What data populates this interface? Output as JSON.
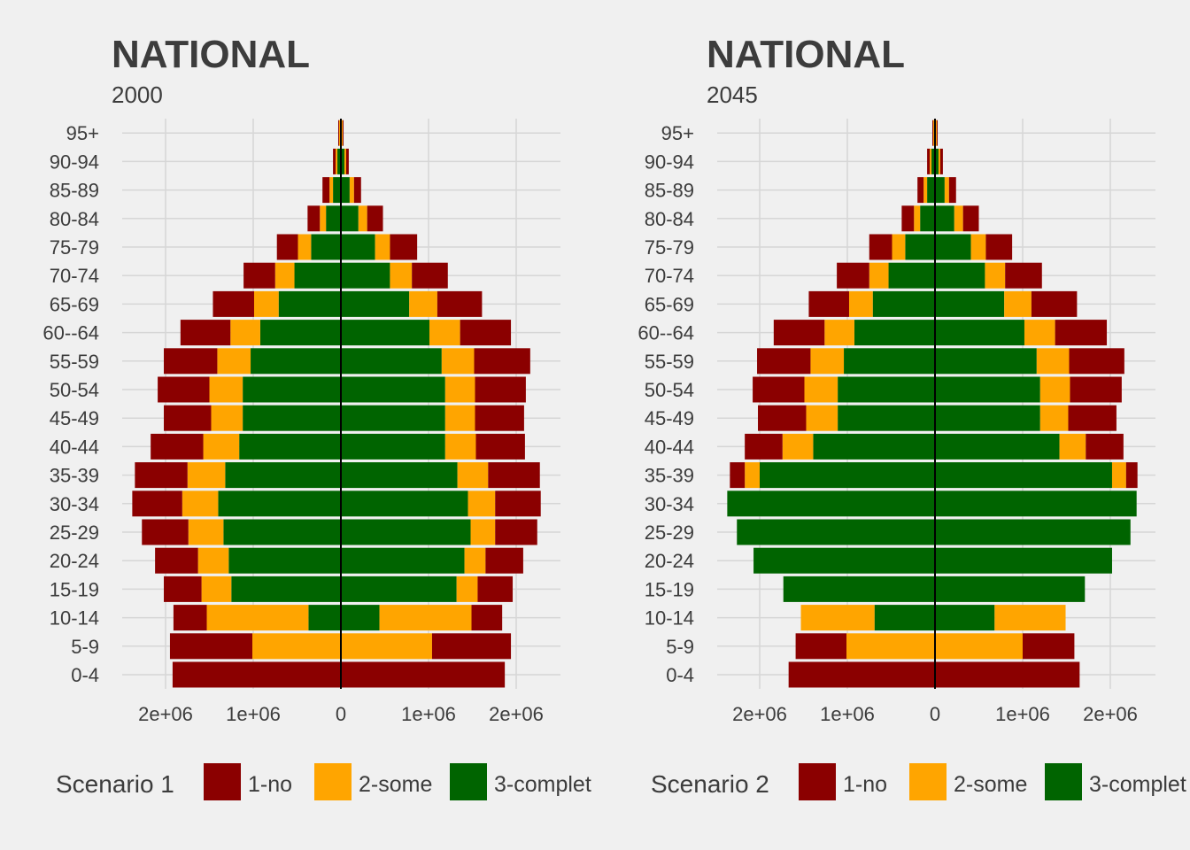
{
  "chart_data": [
    {
      "type": "bar",
      "orientation": "horizontal",
      "stacked": true,
      "pyramid": true,
      "title": "NATIONAL",
      "subtitle": "2000",
      "legend_title": "Scenario 1",
      "legend_position": "bottom",
      "grid": true,
      "xlim": [
        -2500000,
        2500000
      ],
      "x_ticks": [
        {
          "value": -2000000,
          "label": "2e+06"
        },
        {
          "value": -1000000,
          "label": "1e+06"
        },
        {
          "value": 0,
          "label": "0"
        },
        {
          "value": 1000000,
          "label": "1e+06"
        },
        {
          "value": 2000000,
          "label": "2e+06"
        }
      ],
      "categories": [
        "0-4",
        "5-9",
        "10-14",
        "15-19",
        "20-24",
        "25-29",
        "30-34",
        "35-39",
        "40-44",
        "45-49",
        "50-54",
        "55-59",
        "60--64",
        "65-69",
        "70-74",
        "75-79",
        "80-84",
        "85-89",
        "90-94",
        "95+"
      ],
      "series": [
        {
          "name": "3-complet",
          "color": "#006400",
          "left": [
            0,
            0,
            370000,
            1250000,
            1280000,
            1340000,
            1400000,
            1320000,
            1160000,
            1120000,
            1120000,
            1030000,
            920000,
            710000,
            530000,
            340000,
            170000,
            90000,
            40000,
            10000
          ],
          "right": [
            0,
            0,
            440000,
            1320000,
            1410000,
            1480000,
            1450000,
            1330000,
            1190000,
            1190000,
            1190000,
            1150000,
            1010000,
            780000,
            560000,
            390000,
            200000,
            100000,
            40000,
            10000
          ]
        },
        {
          "name": "2-some",
          "color": "#ffa500",
          "left": [
            0,
            1010000,
            1160000,
            340000,
            350000,
            400000,
            410000,
            430000,
            410000,
            360000,
            380000,
            380000,
            340000,
            280000,
            220000,
            150000,
            70000,
            40000,
            20000,
            10000
          ],
          "right": [
            0,
            1040000,
            1050000,
            240000,
            240000,
            280000,
            310000,
            350000,
            350000,
            340000,
            340000,
            370000,
            350000,
            320000,
            250000,
            170000,
            100000,
            50000,
            20000,
            10000
          ]
        },
        {
          "name": "1-no",
          "color": "#8b0000",
          "left": [
            1920000,
            940000,
            380000,
            430000,
            490000,
            530000,
            570000,
            600000,
            600000,
            540000,
            590000,
            610000,
            570000,
            470000,
            360000,
            240000,
            140000,
            80000,
            30000,
            10000
          ],
          "right": [
            1870000,
            900000,
            350000,
            400000,
            430000,
            480000,
            520000,
            590000,
            560000,
            560000,
            580000,
            640000,
            580000,
            510000,
            410000,
            310000,
            180000,
            80000,
            30000,
            10000
          ]
        }
      ]
    },
    {
      "type": "bar",
      "orientation": "horizontal",
      "stacked": true,
      "pyramid": true,
      "title": "NATIONAL",
      "subtitle": "2045",
      "legend_title": "Scenario 2",
      "legend_position": "bottom",
      "grid": true,
      "xlim": [
        -2500000,
        2500000
      ],
      "x_ticks": [
        {
          "value": -2000000,
          "label": "2e+06"
        },
        {
          "value": -1000000,
          "label": "1e+06"
        },
        {
          "value": 0,
          "label": "0"
        },
        {
          "value": 1000000,
          "label": "1e+06"
        },
        {
          "value": 2000000,
          "label": "2e+06"
        }
      ],
      "categories": [
        "0-4",
        "5-9",
        "10-14",
        "15-19",
        "20-24",
        "25-29",
        "30-34",
        "35-39",
        "40-44",
        "45-49",
        "50-54",
        "55-59",
        "60--64",
        "65-69",
        "70-74",
        "75-79",
        "80-84",
        "85-89",
        "90-94",
        "95+"
      ],
      "series": [
        {
          "name": "3-complet",
          "color": "#006400",
          "left": [
            0,
            0,
            690000,
            1730000,
            2070000,
            2260000,
            2370000,
            2000000,
            1390000,
            1110000,
            1110000,
            1040000,
            920000,
            710000,
            530000,
            340000,
            170000,
            90000,
            40000,
            10000
          ],
          "right": [
            0,
            0,
            680000,
            1710000,
            2020000,
            2230000,
            2300000,
            2020000,
            1420000,
            1200000,
            1200000,
            1160000,
            1020000,
            790000,
            570000,
            410000,
            220000,
            110000,
            40000,
            10000
          ]
        },
        {
          "name": "2-some",
          "color": "#ffa500",
          "left": [
            0,
            1010000,
            840000,
            0,
            0,
            0,
            0,
            170000,
            350000,
            360000,
            380000,
            380000,
            340000,
            270000,
            220000,
            150000,
            70000,
            40000,
            20000,
            10000
          ],
          "right": [
            0,
            1000000,
            810000,
            0,
            0,
            0,
            0,
            160000,
            300000,
            320000,
            340000,
            370000,
            350000,
            310000,
            230000,
            170000,
            100000,
            50000,
            20000,
            10000
          ]
        },
        {
          "name": "1-no",
          "color": "#8b0000",
          "left": [
            1670000,
            580000,
            0,
            0,
            0,
            0,
            0,
            170000,
            430000,
            550000,
            590000,
            610000,
            580000,
            460000,
            370000,
            260000,
            140000,
            70000,
            30000,
            10000
          ],
          "right": [
            1650000,
            590000,
            0,
            0,
            0,
            0,
            0,
            130000,
            430000,
            550000,
            590000,
            630000,
            590000,
            520000,
            420000,
            300000,
            180000,
            80000,
            30000,
            10000
          ]
        }
      ]
    }
  ]
}
